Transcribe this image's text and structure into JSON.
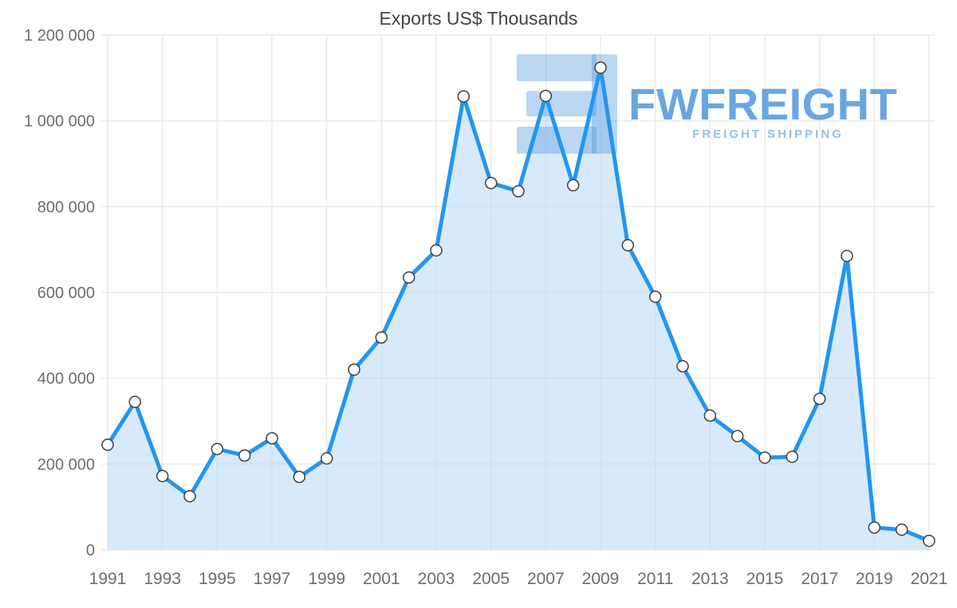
{
  "title": "Exports US$ Thousands",
  "watermark": {
    "brand": "FWFREIGHT",
    "tagline": "FREIGHT SHIPPING"
  },
  "colors": {
    "line": "#2196f3",
    "fill": "#b8d9f5",
    "marker_fill": "#ffffff",
    "marker_stroke": "#3f3f3f",
    "grid": "#e2e2e2",
    "axis_text": "#6d6d6d",
    "title_text": "#454545",
    "watermark_blue": "#4d96da",
    "watermark_light_blue": "#93bfe9"
  },
  "chart_data": {
    "type": "area",
    "title": "Exports US$ Thousands",
    "xlabel": "",
    "ylabel": "",
    "x": [
      1991,
      1992,
      1993,
      1994,
      1995,
      1996,
      1997,
      1998,
      1999,
      2000,
      2001,
      2002,
      2003,
      2004,
      2005,
      2006,
      2007,
      2008,
      2009,
      2010,
      2011,
      2012,
      2013,
      2014,
      2015,
      2016,
      2017,
      2018,
      2019,
      2020,
      2021
    ],
    "series": [
      {
        "name": "Exports US$ Thousands",
        "values": [
          245000,
          345000,
          172000,
          125000,
          235000,
          220000,
          260000,
          170000,
          213000,
          420000,
          495000,
          635000,
          698000,
          1057000,
          855000,
          836000,
          1058000,
          850000,
          1124000,
          710000,
          590000,
          428000,
          313000,
          265000,
          215000,
          217000,
          352000,
          685000,
          52000,
          47000,
          21000
        ]
      }
    ],
    "values": [
      245000,
      345000,
      172000,
      125000,
      235000,
      220000,
      260000,
      170000,
      213000,
      420000,
      495000,
      635000,
      698000,
      1057000,
      855000,
      836000,
      1058000,
      850000,
      1124000,
      710000,
      590000,
      428000,
      313000,
      265000,
      215000,
      217000,
      352000,
      685000,
      52000,
      47000,
      21000
    ],
    "ylim": [
      0,
      1200000
    ],
    "yticks": [
      0,
      200000,
      400000,
      600000,
      800000,
      1000000,
      1200000
    ],
    "ytick_labels": [
      "0",
      "200 000",
      "400 000",
      "600 000",
      "800 000",
      "1 000 000",
      "1 200 000"
    ],
    "xticks": [
      1991,
      1993,
      1995,
      1997,
      1999,
      2001,
      2003,
      2005,
      2007,
      2009,
      2011,
      2013,
      2015,
      2017,
      2019,
      2021
    ],
    "grid": true,
    "legend": false,
    "marker": "circle"
  }
}
